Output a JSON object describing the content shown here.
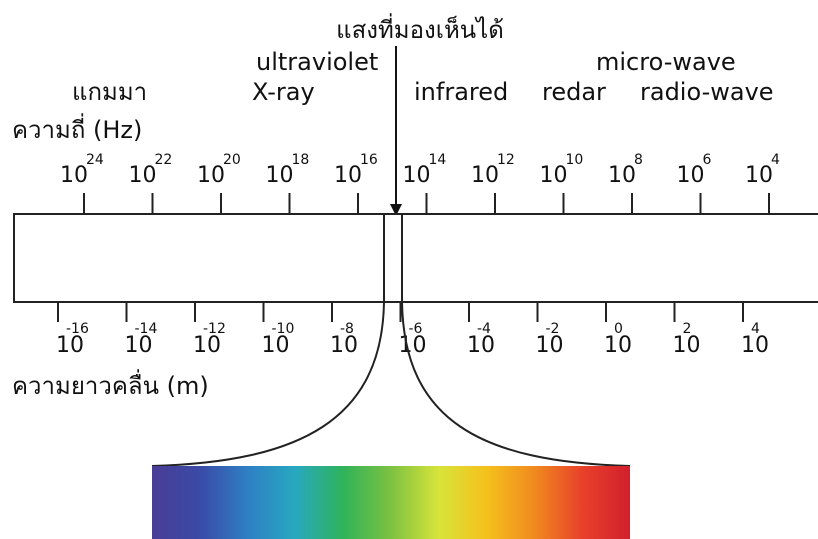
{
  "labels": {
    "visible_light": "แสงที่มองเห็นได้",
    "ultraviolet": "ultraviolet",
    "gamma": "แกมมา",
    "xray": "X-ray",
    "infrared": "infrared",
    "radar": "redar",
    "microwave": "micro-wave",
    "radio": "radio-wave",
    "frequency_axis": "ความถี่ (Hz)",
    "wavelength_axis": "ความยาวคลื่น (m)"
  },
  "frequency_ticks": [
    {
      "base": "10",
      "exp": "24"
    },
    {
      "base": "10",
      "exp": "22"
    },
    {
      "base": "10",
      "exp": "20"
    },
    {
      "base": "10",
      "exp": "18"
    },
    {
      "base": "10",
      "exp": "16"
    },
    {
      "base": "10",
      "exp": "14"
    },
    {
      "base": "10",
      "exp": "12"
    },
    {
      "base": "10",
      "exp": "10"
    },
    {
      "base": "10",
      "exp": "8"
    },
    {
      "base": "10",
      "exp": "6"
    },
    {
      "base": "10",
      "exp": "4"
    }
  ],
  "wavelength_ticks": [
    {
      "base": "10",
      "exp": "-16"
    },
    {
      "base": "10",
      "exp": "-14"
    },
    {
      "base": "10",
      "exp": "-12"
    },
    {
      "base": "10",
      "exp": "-10"
    },
    {
      "base": "10",
      "exp": "-8"
    },
    {
      "base": "10",
      "exp": "-6"
    },
    {
      "base": "10",
      "exp": "-4"
    },
    {
      "base": "10",
      "exp": "-2"
    },
    {
      "base": "10",
      "exp": "0"
    },
    {
      "base": "10",
      "exp": "2"
    },
    {
      "base": "10",
      "exp": "4"
    }
  ],
  "visible_spectrum_colors": [
    "#4a3d96",
    "#3a4aa6",
    "#2f7fc4",
    "#27a8c0",
    "#2fb35a",
    "#7cc242",
    "#d7e43a",
    "#f5c11c",
    "#f08a1e",
    "#e8412a",
    "#d11f2d"
  ]
}
